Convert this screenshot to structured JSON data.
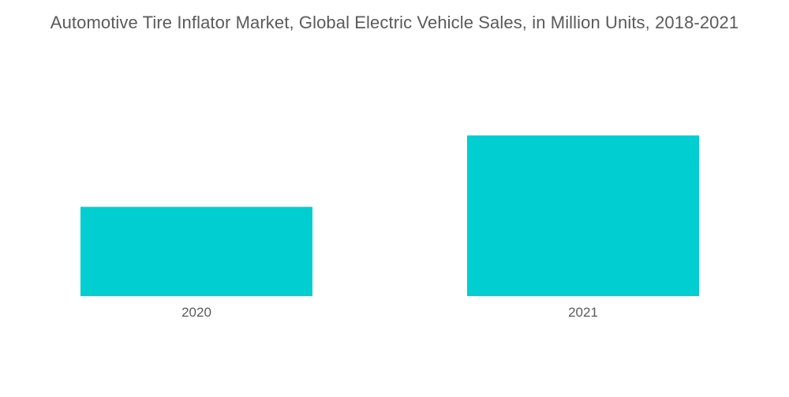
{
  "chart_data": {
    "type": "bar",
    "title": "Automotive Tire Inflator Market, Global Electric Vehicle Sales, in Million Units, 2018-2021",
    "categories": [
      "2020",
      "2021"
    ],
    "values": [
      3.0,
      5.4
    ],
    "xlabel": "",
    "ylabel": "",
    "ylim": [
      0,
      7.7
    ],
    "grid": false,
    "legend": "none",
    "colors": {
      "bar": "#00CED1",
      "text": "#5a5a5a"
    }
  }
}
